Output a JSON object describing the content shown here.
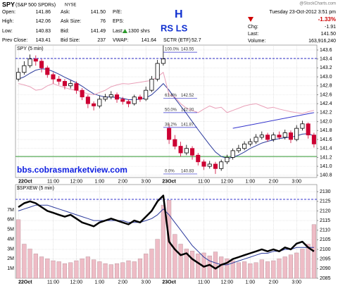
{
  "header": {
    "symbol": "SPY",
    "name": "(S&P 500 SPDRs)",
    "exchange": "NYSE",
    "source": "@StockCharts.com",
    "quote": [
      {
        "label": "Open:",
        "value": "141.86"
      },
      {
        "label": "High:",
        "value": "142.06"
      },
      {
        "label": "Low:",
        "value": "140.83"
      },
      {
        "label": "Prev Close:",
        "value": "143.41"
      },
      {
        "label": "Ask:",
        "value": "141.50"
      },
      {
        "label": "Ask Size:",
        "value": "76"
      },
      {
        "label": "Bid:",
        "value": "141.49"
      },
      {
        "label": "Bid Size:",
        "value": "237"
      },
      {
        "label": "P/E:"
      },
      {
        "label": "EPS:"
      },
      {
        "label": "Last:",
        "value": "1300 shrs"
      },
      {
        "label": "VWAP:",
        "value": "141.64"
      }
    ],
    "sctr_label": "SCTR (ETF)",
    "sctr": "52.7",
    "datetime": "Tuesday 23-Oct-2012 3:51 pm",
    "change_pct": "-1.33%",
    "chg_label": "Chg:",
    "chg": "-1.91",
    "last_label": "Last:",
    "last": "141.50",
    "volume_label": "Volume:",
    "volume": "163,916,240"
  },
  "annotations": {
    "h": "H",
    "rsls": "RS LS",
    "url": "bbs.cobrasmarketview.com"
  },
  "chart_data": [
    {
      "type": "candlestick",
      "title": "SPY (5 min)",
      "categories": [
        "22Oct",
        null,
        null,
        null,
        null,
        null,
        "11:00",
        null,
        null,
        null,
        "12:00",
        null,
        null,
        null,
        "1:00",
        null,
        null,
        null,
        "2:00",
        null,
        null,
        null,
        "3:00",
        null,
        null,
        null,
        "23Oct",
        null,
        null,
        null,
        null,
        null,
        "11:00",
        null,
        null,
        null,
        "12:00",
        null,
        null,
        null,
        "1:00",
        null,
        null,
        null,
        "2:00",
        null,
        null,
        null,
        "3:00",
        null,
        null,
        null
      ],
      "open": [
        142.95,
        143.1,
        143.25,
        143.4,
        143.35,
        143.2,
        143.05,
        142.95,
        142.9,
        142.8,
        142.85,
        142.7,
        142.55,
        142.4,
        142.35,
        142.5,
        142.55,
        142.6,
        142.5,
        142.45,
        142.4,
        142.55,
        142.5,
        142.7,
        142.95,
        143.3,
        141.85,
        141.6,
        141.45,
        141.3,
        141.4,
        141.25,
        141.1,
        141.0,
        141.05,
        140.95,
        141.1,
        141.2,
        141.35,
        141.4,
        141.5,
        141.55,
        141.65,
        141.7,
        141.6,
        141.7,
        141.65,
        141.75,
        141.6,
        141.85,
        141.95,
        141.7
      ],
      "high": [
        143.2,
        143.35,
        143.5,
        143.48,
        143.4,
        143.25,
        143.1,
        143.02,
        142.95,
        142.92,
        142.9,
        142.75,
        142.6,
        142.45,
        142.58,
        142.62,
        142.68,
        142.65,
        142.55,
        142.5,
        142.6,
        142.6,
        142.78,
        143.02,
        143.38,
        143.7,
        141.95,
        141.7,
        141.55,
        141.48,
        141.45,
        141.3,
        141.15,
        141.12,
        141.1,
        141.15,
        141.26,
        141.4,
        141.48,
        141.56,
        141.62,
        141.72,
        141.78,
        141.75,
        141.76,
        141.78,
        141.82,
        141.8,
        141.92,
        142.02,
        141.98,
        141.75
      ],
      "low": [
        142.9,
        143.05,
        143.2,
        143.25,
        143.1,
        142.98,
        142.85,
        142.82,
        142.72,
        142.74,
        142.62,
        142.48,
        142.3,
        142.25,
        142.3,
        142.45,
        142.5,
        142.42,
        142.38,
        142.32,
        142.36,
        142.44,
        142.46,
        142.66,
        142.9,
        143.25,
        141.5,
        141.38,
        141.22,
        141.25,
        141.15,
        141.02,
        140.92,
        140.95,
        140.83,
        140.9,
        141.05,
        141.15,
        141.3,
        141.36,
        141.45,
        141.5,
        141.6,
        141.55,
        141.55,
        141.6,
        141.6,
        141.52,
        141.56,
        141.8,
        141.62,
        141.42
      ],
      "close": [
        143.1,
        143.25,
        143.4,
        143.35,
        143.2,
        143.05,
        142.95,
        142.9,
        142.8,
        142.85,
        142.7,
        142.55,
        142.4,
        142.35,
        142.5,
        142.55,
        142.6,
        142.5,
        142.45,
        142.4,
        142.55,
        142.5,
        142.7,
        142.95,
        143.3,
        143.4,
        141.6,
        141.45,
        141.3,
        141.4,
        141.25,
        141.1,
        141.0,
        141.05,
        140.95,
        141.1,
        141.2,
        141.35,
        141.4,
        141.5,
        141.55,
        141.65,
        141.7,
        141.6,
        141.7,
        141.65,
        141.75,
        141.6,
        141.85,
        141.95,
        141.7,
        141.5
      ],
      "up_color": "#000000",
      "down_color": "#cc0033",
      "series": [
        {
          "type": "line",
          "color": "#2b3a9c",
          "width": 1,
          "values": [
            142.95,
            143.0,
            143.08,
            143.15,
            143.18,
            143.17,
            143.12,
            143.06,
            142.99,
            142.93,
            142.87,
            142.79,
            142.7,
            142.62,
            142.58,
            142.55,
            142.55,
            142.54,
            142.52,
            142.49,
            142.49,
            142.5,
            142.53,
            142.6,
            142.72,
            142.85,
            142.7,
            142.52,
            142.35,
            142.18,
            142.0,
            141.82,
            141.65,
            141.48,
            141.32,
            141.22,
            141.18,
            141.2,
            141.25,
            141.32,
            141.4,
            141.46,
            141.52,
            141.56,
            141.59,
            141.62,
            141.64,
            141.65,
            141.68,
            141.72,
            141.73,
            141.68
          ]
        },
        {
          "type": "line",
          "color": "#e9a0b8",
          "width": 1,
          "values": [
            142.85,
            142.82,
            142.78,
            142.7,
            142.72,
            142.8,
            142.85,
            142.8,
            142.76,
            142.72,
            142.7,
            142.66,
            142.62,
            142.6,
            142.65,
            142.7,
            142.78,
            142.82,
            142.85,
            142.84,
            142.86,
            142.88,
            142.9,
            142.92,
            143.0,
            143.1,
            142.6,
            142.55,
            142.4,
            142.3,
            142.25,
            142.2,
            142.28,
            142.35,
            142.3,
            142.32,
            142.2,
            142.25,
            142.3,
            142.35,
            142.38,
            142.4,
            142.35,
            142.3,
            142.32,
            142.28,
            142.25,
            142.22,
            142.2,
            142.18,
            142.22,
            142.25
          ]
        }
      ],
      "hlines": [
        {
          "value": 143.41,
          "color": "#3333cc",
          "dash": true
        },
        {
          "value": 141.22,
          "color": "#339933",
          "dash": false
        }
      ],
      "trendline": {
        "x": [
          37,
          51
        ],
        "y": [
          141.85,
          142.2
        ],
        "color": "#3333cc"
      },
      "fib": [
        {
          "level": "100.0%",
          "price": 143.55
        },
        {
          "level": "61.8%",
          "price": 142.52
        },
        {
          "level": "50.0%",
          "price": {
            "value": 142.2,
            "label": "142.20"
          }
        },
        {
          "level": "38.2%",
          "price": 141.87
        },
        {
          "level": "0.0%",
          "price": 140.83
        }
      ],
      "ylim": [
        140.75,
        143.71
      ],
      "yticks": [
        140.8,
        {
          "value": 141,
          "label": "141.0"
        },
        141.2,
        141.4,
        141.6,
        141.8,
        {
          "value": 142,
          "label": "142.0"
        },
        142.2,
        142.4,
        142.6,
        142.8,
        {
          "value": 143,
          "label": "143.0"
        },
        143.2,
        143.4,
        143.6
      ],
      "grid": true
    },
    {
      "type": "line",
      "title": "$SPXEW (5 min)",
      "categories": [
        "22Oct",
        null,
        null,
        null,
        null,
        null,
        "11:00",
        null,
        null,
        null,
        "12:00",
        null,
        null,
        null,
        "1:00",
        null,
        null,
        null,
        "2:00",
        null,
        null,
        null,
        "3:00",
        null,
        null,
        null,
        "23Oct",
        null,
        null,
        null,
        null,
        null,
        "11:00",
        null,
        null,
        null,
        "12:00",
        null,
        null,
        null,
        "1:00",
        null,
        null,
        null,
        "2:00",
        null,
        null,
        null,
        "3:00",
        null,
        null,
        null
      ],
      "series": [
        {
          "type": "bar",
          "axis": "y2",
          "color": "#eebcc6",
          "values": [
            6000000,
            3500000,
            3000000,
            2500000,
            2200000,
            2000000,
            1800000,
            1700000,
            1500000,
            1600000,
            1800000,
            2000000,
            2200000,
            1900000,
            1700000,
            1500000,
            1400000,
            1500000,
            1600000,
            1800000,
            1700000,
            2000000,
            2500000,
            3000000,
            4000000,
            7500000,
            8000000,
            4500000,
            3500000,
            3000000,
            2800000,
            2500000,
            2600000,
            2300000,
            2700000,
            2200000,
            2000000,
            1800000,
            1600000,
            1700000,
            1500000,
            1600000,
            1900000,
            1700000,
            1800000,
            2000000,
            2200000,
            2400000,
            2600000,
            3000000,
            3500000,
            5500000
          ]
        },
        {
          "type": "line",
          "color": "#2b3a9c",
          "width": 1,
          "values": [
            2120,
            2121,
            2122,
            2123,
            2123,
            2123,
            2122,
            2121,
            2120,
            2119,
            2118,
            2117,
            2116,
            2115,
            2115,
            2115,
            2115,
            2115,
            2115,
            2114,
            2114,
            2114,
            2115,
            2116,
            2118,
            2121,
            2118,
            2114,
            2110,
            2106,
            2102,
            2099,
            2096,
            2094,
            2093,
            2092,
            2092,
            2093,
            2094,
            2095,
            2096,
            2097,
            2098,
            2098,
            2099,
            2099,
            2100,
            2100,
            2101,
            2101,
            2101,
            2101
          ]
        },
        {
          "type": "line",
          "color": "#000000",
          "width": 2.5,
          "values": [
            2122,
            2124,
            2125,
            2124,
            2122,
            2120,
            2119,
            2118,
            2117,
            2118,
            2116,
            2114,
            2113,
            2112,
            2114,
            2115,
            2116,
            2115,
            2114,
            2113,
            2115,
            2114,
            2117,
            2120,
            2125,
            2128,
            2104,
            2100,
            2097,
            2098,
            2095,
            2093,
            2091,
            2092,
            2090,
            2092,
            2093,
            2095,
            2096,
            2097,
            2098,
            2099,
            2100,
            2099,
            2100,
            2099,
            2101,
            2100,
            2103,
            2104,
            2101,
            2099
          ]
        }
      ],
      "hlines": [
        {
          "value": 2126,
          "color": "#3333cc",
          "dash": true
        }
      ],
      "ylim": [
        2085,
        2133.7
      ],
      "yticks": [
        2085,
        2090,
        2095,
        2100,
        2105,
        2110,
        2115,
        2120,
        2125,
        2130
      ],
      "y2lim": [
        0,
        9600000
      ],
      "y2ticks": [
        {
          "value": 1000000,
          "label": "1M"
        },
        {
          "value": 2000000,
          "label": "2M"
        },
        {
          "value": 3000000,
          "label": "3M"
        },
        {
          "value": 4000000,
          "label": "4M"
        },
        {
          "value": 5000000,
          "label": "5M"
        },
        {
          "value": 6000000,
          "label": "6M"
        },
        {
          "value": 7000000,
          "label": "7M"
        }
      ],
      "grid": true
    }
  ]
}
